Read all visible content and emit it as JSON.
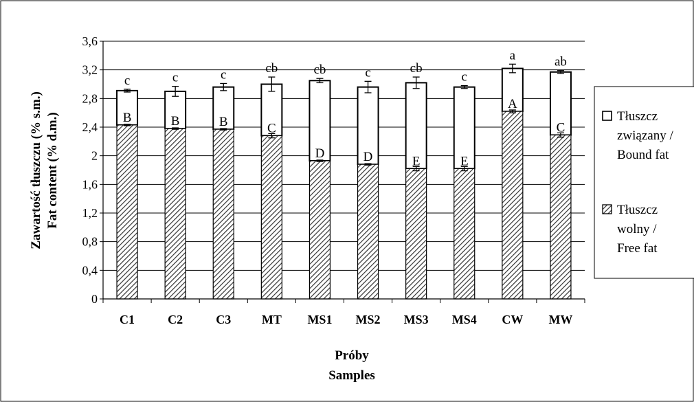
{
  "chart_data": {
    "type": "bar",
    "stacked": true,
    "categories": [
      "C1",
      "C2",
      "C3",
      "MT",
      "MS1",
      "MS2",
      "MS3",
      "MS4",
      "CW",
      "MW"
    ],
    "series": [
      {
        "name": "Tłuszcz wolny / Free fat",
        "name_lines": [
          "Tłuszcz",
          "wolny /",
          "Free fat"
        ],
        "values": [
          2.43,
          2.38,
          2.37,
          2.28,
          1.93,
          1.88,
          1.82,
          1.82,
          2.62,
          2.29
        ],
        "errors": [
          0.01,
          0.01,
          0.01,
          0.03,
          0.01,
          0.01,
          0.03,
          0.03,
          0.02,
          0.03
        ],
        "letters": [
          "B",
          "B",
          "B",
          "C",
          "D",
          "D",
          "E",
          "E",
          "A",
          "C"
        ],
        "fill": "hatched",
        "color": "#000000"
      },
      {
        "name": "Tłuszcz związany / Bound fat",
        "name_lines": [
          "Tłuszcz",
          "związany /",
          "Bound fat"
        ],
        "totals": [
          2.91,
          2.9,
          2.96,
          3.0,
          3.05,
          2.96,
          3.02,
          2.96,
          3.22,
          3.17
        ],
        "total_errors": [
          0.02,
          0.07,
          0.05,
          0.1,
          0.03,
          0.08,
          0.08,
          0.02,
          0.06,
          0.02
        ],
        "letters": [
          "c",
          "c",
          "c",
          "cb",
          "cb",
          "c",
          "cb",
          "c",
          "a",
          "ab"
        ],
        "fill": "white",
        "color": "#000000"
      }
    ],
    "ylabel_lines": [
      "Zawartość tłuszczu (% s.m.)",
      "Fat content (% d.m.)"
    ],
    "xlabel_lines": [
      "Próby",
      "Samples"
    ],
    "yticks": [
      "0",
      "0,4",
      "0,8",
      "1,2",
      "1,6",
      "2",
      "2,4",
      "2,8",
      "3,2",
      "3,6"
    ],
    "ylim": [
      0,
      3.6
    ],
    "grid": true,
    "legend_position": "right"
  }
}
